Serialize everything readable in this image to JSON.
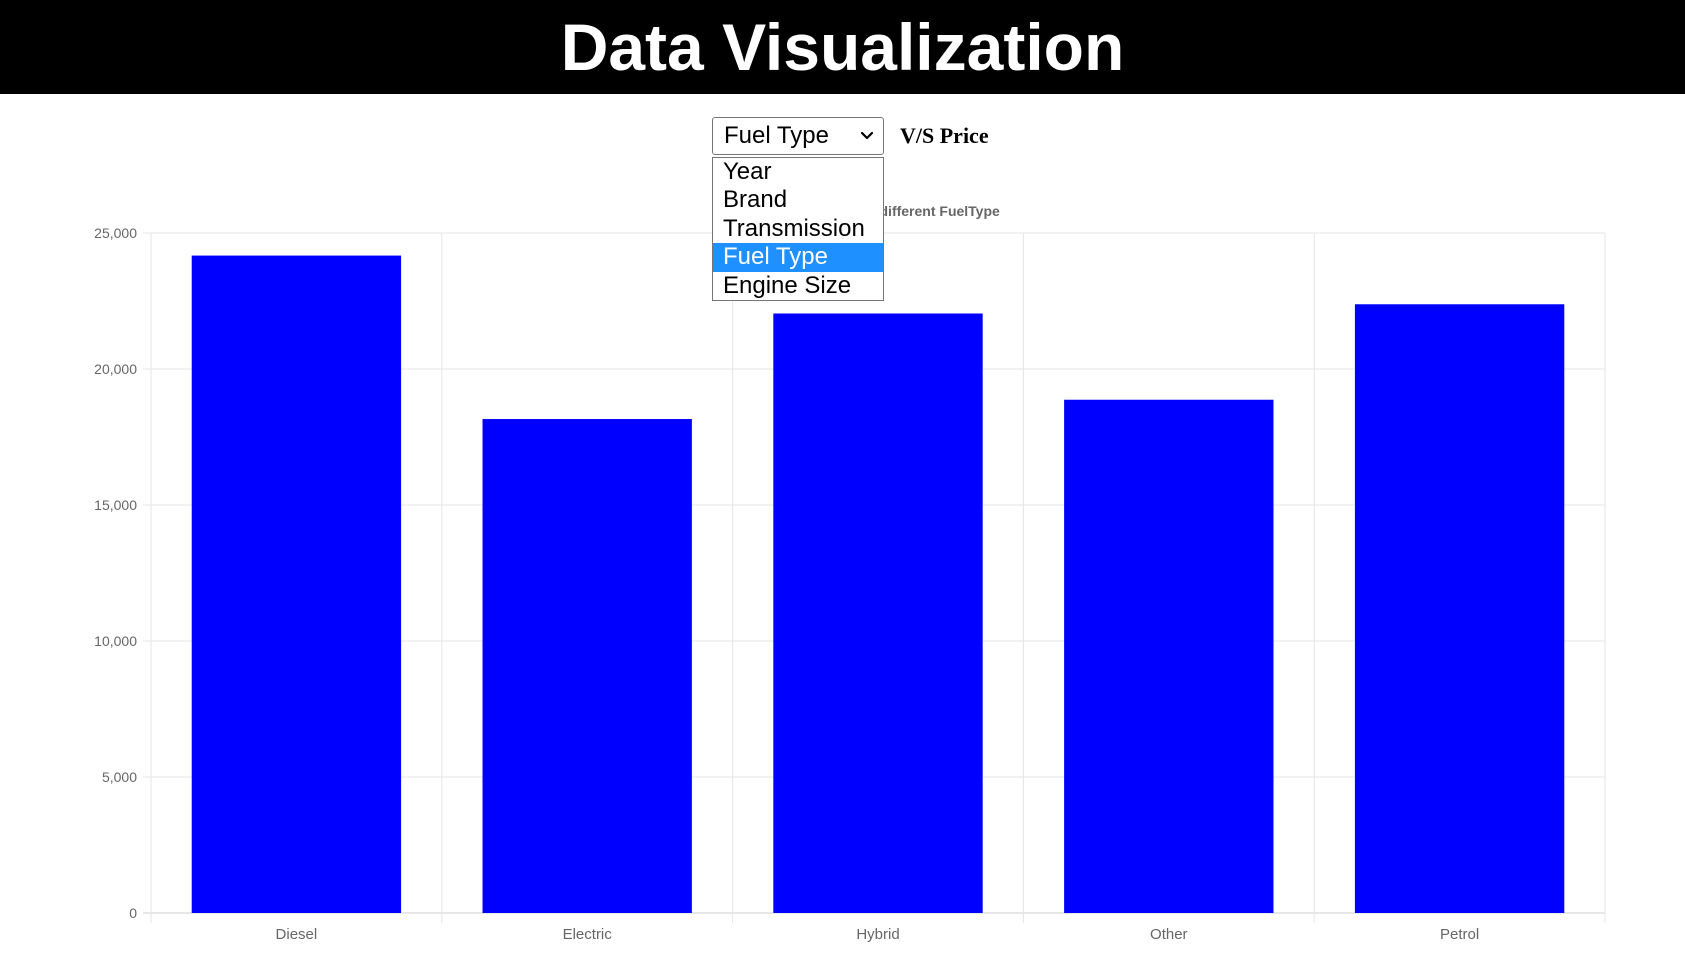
{
  "header": {
    "title": "Data Visualization"
  },
  "controls": {
    "selected": "Fuel Type",
    "vs_label": "V/S Price",
    "options": [
      "Year",
      "Brand",
      "Transmission",
      "Fuel Type",
      "Engine Size"
    ],
    "highlight_color": "#1e90ff"
  },
  "chart_data": {
    "type": "bar",
    "title": "Average Price for different FuelType",
    "categories": [
      "Diesel",
      "Electric",
      "Hybrid",
      "Other",
      "Petrol"
    ],
    "values": [
      24170,
      18160,
      22040,
      18870,
      22380
    ],
    "ylim": [
      0,
      25000
    ],
    "yticks": [
      0,
      5000,
      10000,
      15000,
      20000,
      25000
    ],
    "ytick_labels": [
      "0",
      "5,000",
      "10,000",
      "15,000",
      "20,000",
      "25,000"
    ],
    "bar_color": "#0000ff",
    "grid": true
  }
}
